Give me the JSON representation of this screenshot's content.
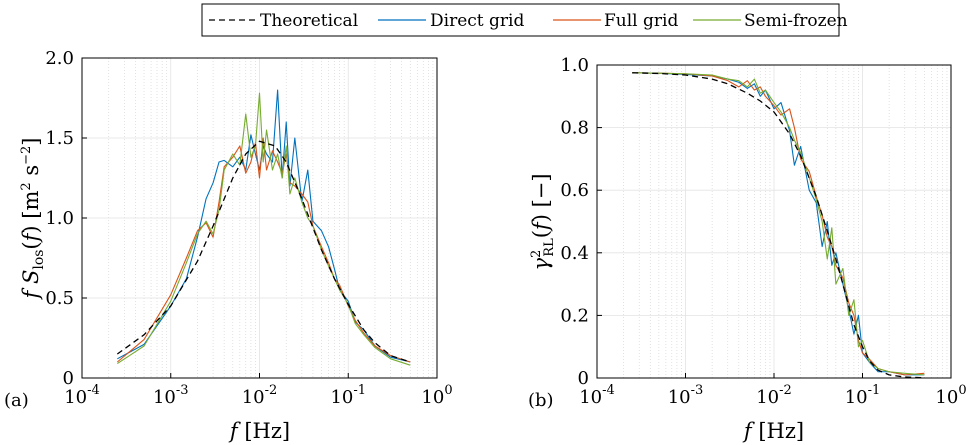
{
  "legend": {
    "entries": [
      {
        "label": "Theoretical",
        "color": "#000000",
        "dash": "dashed"
      },
      {
        "label": "Direct grid",
        "color": "#0072bd",
        "dash": "solid"
      },
      {
        "label": "Full grid",
        "color": "#d95319",
        "dash": "solid"
      },
      {
        "label": "Semi-frozen",
        "color": "#77ac30",
        "dash": "solid"
      }
    ],
    "placement": "top-center"
  },
  "chart_data": [
    {
      "type": "line",
      "panel_label": "(a)",
      "xlabel": "f [Hz]",
      "ylabel": "f S_los(f) [m² s⁻²]",
      "xscale": "log",
      "xlim": [
        0.0001,
        1
      ],
      "ylim": [
        0,
        2
      ],
      "xticks": [
        0.0001,
        0.001,
        0.01,
        0.1,
        1
      ],
      "xtick_labels": [
        {
          "base": "10",
          "exp": "-4"
        },
        {
          "base": "10",
          "exp": "-3"
        },
        {
          "base": "10",
          "exp": "-2"
        },
        {
          "base": "10",
          "exp": "-1"
        },
        {
          "base": "10",
          "exp": "0"
        }
      ],
      "yticks": [
        0,
        0.5,
        1,
        1.5,
        2
      ],
      "ytick_labels": [
        "0",
        "0.5",
        "1.0",
        "1.5",
        "2.0"
      ],
      "grid": true,
      "series": [
        {
          "name": "Theoretical",
          "color": "#000000",
          "dash": "dashed",
          "x": [
            0.00025,
            0.0005,
            0.001,
            0.002,
            0.003,
            0.005,
            0.007,
            0.01,
            0.015,
            0.02,
            0.03,
            0.05,
            0.07,
            0.1,
            0.15,
            0.2,
            0.3,
            0.5
          ],
          "y": [
            0.15,
            0.27,
            0.45,
            0.73,
            0.95,
            1.25,
            1.4,
            1.48,
            1.45,
            1.35,
            1.12,
            0.8,
            0.62,
            0.46,
            0.3,
            0.22,
            0.14,
            0.1
          ]
        },
        {
          "name": "Direct grid",
          "color": "#0072bd",
          "dash": "solid",
          "x": [
            0.00025,
            0.0005,
            0.001,
            0.0015,
            0.002,
            0.0025,
            0.003,
            0.0035,
            0.004,
            0.005,
            0.006,
            0.007,
            0.008,
            0.009,
            0.01,
            0.011,
            0.012,
            0.014,
            0.016,
            0.018,
            0.02,
            0.022,
            0.025,
            0.03,
            0.035,
            0.04,
            0.05,
            0.06,
            0.07,
            0.08,
            0.1,
            0.12,
            0.15,
            0.2,
            0.3,
            0.5
          ],
          "y": [
            0.12,
            0.21,
            0.45,
            0.62,
            0.88,
            1.12,
            1.22,
            1.35,
            1.36,
            1.32,
            1.38,
            1.3,
            1.52,
            1.4,
            1.3,
            1.45,
            1.4,
            1.35,
            1.8,
            1.25,
            1.6,
            1.2,
            1.5,
            1.1,
            1.3,
            0.98,
            0.92,
            0.82,
            0.68,
            0.55,
            0.48,
            0.35,
            0.3,
            0.2,
            0.13,
            0.1
          ]
        },
        {
          "name": "Full grid",
          "color": "#d95319",
          "dash": "solid",
          "x": [
            0.00025,
            0.0005,
            0.001,
            0.0015,
            0.002,
            0.0025,
            0.003,
            0.0035,
            0.004,
            0.005,
            0.006,
            0.007,
            0.008,
            0.009,
            0.01,
            0.011,
            0.012,
            0.014,
            0.016,
            0.018,
            0.02,
            0.022,
            0.025,
            0.03,
            0.035,
            0.04,
            0.05,
            0.06,
            0.07,
            0.08,
            0.1,
            0.12,
            0.15,
            0.2,
            0.3,
            0.5
          ],
          "y": [
            0.1,
            0.24,
            0.52,
            0.75,
            0.92,
            0.97,
            0.88,
            1.1,
            1.32,
            1.38,
            1.45,
            1.28,
            1.35,
            1.47,
            1.25,
            1.5,
            1.3,
            1.42,
            1.35,
            1.28,
            1.4,
            1.22,
            1.2,
            1.15,
            1.1,
            0.95,
            0.82,
            0.72,
            0.62,
            0.58,
            0.45,
            0.36,
            0.28,
            0.2,
            0.14,
            0.1
          ]
        },
        {
          "name": "Semi-frozen",
          "color": "#77ac30",
          "dash": "solid",
          "x": [
            0.00025,
            0.0005,
            0.001,
            0.0015,
            0.002,
            0.0025,
            0.003,
            0.0035,
            0.004,
            0.005,
            0.006,
            0.007,
            0.008,
            0.009,
            0.01,
            0.011,
            0.012,
            0.014,
            0.016,
            0.018,
            0.02,
            0.022,
            0.025,
            0.03,
            0.035,
            0.04,
            0.05,
            0.06,
            0.07,
            0.08,
            0.1,
            0.12,
            0.15,
            0.2,
            0.3,
            0.5
          ],
          "y": [
            0.09,
            0.2,
            0.48,
            0.72,
            0.9,
            0.98,
            0.9,
            1.05,
            1.3,
            1.4,
            1.33,
            1.65,
            1.38,
            1.45,
            1.78,
            1.35,
            1.55,
            1.3,
            1.4,
            1.25,
            1.45,
            1.15,
            1.25,
            1.1,
            1.0,
            0.95,
            0.8,
            0.7,
            0.62,
            0.55,
            0.46,
            0.34,
            0.27,
            0.19,
            0.12,
            0.08
          ]
        }
      ]
    },
    {
      "type": "line",
      "panel_label": "(b)",
      "xlabel": "f [Hz]",
      "ylabel": "γ²_RL(f) [−]",
      "xscale": "log",
      "xlim": [
        0.0001,
        1
      ],
      "ylim": [
        0,
        1
      ],
      "xticks": [
        0.0001,
        0.001,
        0.01,
        0.1,
        1
      ],
      "xtick_labels": [
        {
          "base": "10",
          "exp": "-4"
        },
        {
          "base": "10",
          "exp": "-3"
        },
        {
          "base": "10",
          "exp": "-2"
        },
        {
          "base": "10",
          "exp": "-1"
        },
        {
          "base": "10",
          "exp": "0"
        }
      ],
      "yticks": [
        0,
        0.2,
        0.4,
        0.6,
        0.8,
        1
      ],
      "ytick_labels": [
        "0",
        "0.2",
        "0.4",
        "0.6",
        "0.8",
        "1.0"
      ],
      "grid": true,
      "series": [
        {
          "name": "Theoretical",
          "color": "#000000",
          "dash": "dashed",
          "x": [
            0.00025,
            0.0005,
            0.001,
            0.002,
            0.003,
            0.005,
            0.007,
            0.01,
            0.015,
            0.02,
            0.03,
            0.04,
            0.05,
            0.06,
            0.07,
            0.08,
            0.1,
            0.12,
            0.15,
            0.2,
            0.3,
            0.5
          ],
          "y": [
            0.975,
            0.973,
            0.968,
            0.955,
            0.94,
            0.91,
            0.885,
            0.85,
            0.78,
            0.71,
            0.58,
            0.47,
            0.38,
            0.3,
            0.23,
            0.17,
            0.1,
            0.055,
            0.025,
            0.01,
            0.003,
            0.001
          ]
        },
        {
          "name": "Direct grid",
          "color": "#0072bd",
          "dash": "solid",
          "x": [
            0.00025,
            0.0005,
            0.001,
            0.002,
            0.003,
            0.004,
            0.005,
            0.006,
            0.007,
            0.008,
            0.01,
            0.012,
            0.015,
            0.017,
            0.02,
            0.025,
            0.03,
            0.035,
            0.04,
            0.045,
            0.05,
            0.06,
            0.07,
            0.08,
            0.09,
            0.1,
            0.12,
            0.15,
            0.2,
            0.3,
            0.5
          ],
          "y": [
            0.975,
            0.974,
            0.97,
            0.965,
            0.955,
            0.945,
            0.925,
            0.94,
            0.9,
            0.92,
            0.86,
            0.88,
            0.79,
            0.68,
            0.74,
            0.6,
            0.56,
            0.42,
            0.5,
            0.36,
            0.4,
            0.3,
            0.22,
            0.14,
            0.2,
            0.08,
            0.05,
            0.02,
            0.02,
            0.01,
            0.01
          ]
        },
        {
          "name": "Full grid",
          "color": "#d95319",
          "dash": "solid",
          "x": [
            0.00025,
            0.0005,
            0.001,
            0.002,
            0.003,
            0.004,
            0.005,
            0.006,
            0.007,
            0.008,
            0.01,
            0.012,
            0.015,
            0.017,
            0.02,
            0.025,
            0.03,
            0.035,
            0.04,
            0.045,
            0.05,
            0.06,
            0.07,
            0.08,
            0.09,
            0.1,
            0.12,
            0.15,
            0.2,
            0.3,
            0.5
          ],
          "y": [
            0.975,
            0.974,
            0.972,
            0.965,
            0.95,
            0.93,
            0.95,
            0.92,
            0.93,
            0.9,
            0.87,
            0.84,
            0.86,
            0.8,
            0.7,
            0.66,
            0.58,
            0.52,
            0.45,
            0.42,
            0.36,
            0.32,
            0.24,
            0.2,
            0.12,
            0.08,
            0.06,
            0.03,
            0.02,
            0.01,
            0.015
          ]
        },
        {
          "name": "Semi-frozen",
          "color": "#77ac30",
          "dash": "solid",
          "x": [
            0.00025,
            0.0005,
            0.001,
            0.002,
            0.003,
            0.004,
            0.005,
            0.006,
            0.007,
            0.008,
            0.01,
            0.012,
            0.015,
            0.017,
            0.02,
            0.025,
            0.03,
            0.035,
            0.04,
            0.045,
            0.05,
            0.06,
            0.07,
            0.08,
            0.09,
            0.1,
            0.12,
            0.15,
            0.2,
            0.3,
            0.5
          ],
          "y": [
            0.975,
            0.974,
            0.972,
            0.968,
            0.955,
            0.95,
            0.93,
            0.955,
            0.91,
            0.92,
            0.88,
            0.85,
            0.8,
            0.76,
            0.72,
            0.64,
            0.57,
            0.5,
            0.38,
            0.48,
            0.3,
            0.35,
            0.2,
            0.25,
            0.1,
            0.12,
            0.05,
            0.03,
            0.02,
            0.015,
            0.01
          ]
        }
      ]
    }
  ]
}
